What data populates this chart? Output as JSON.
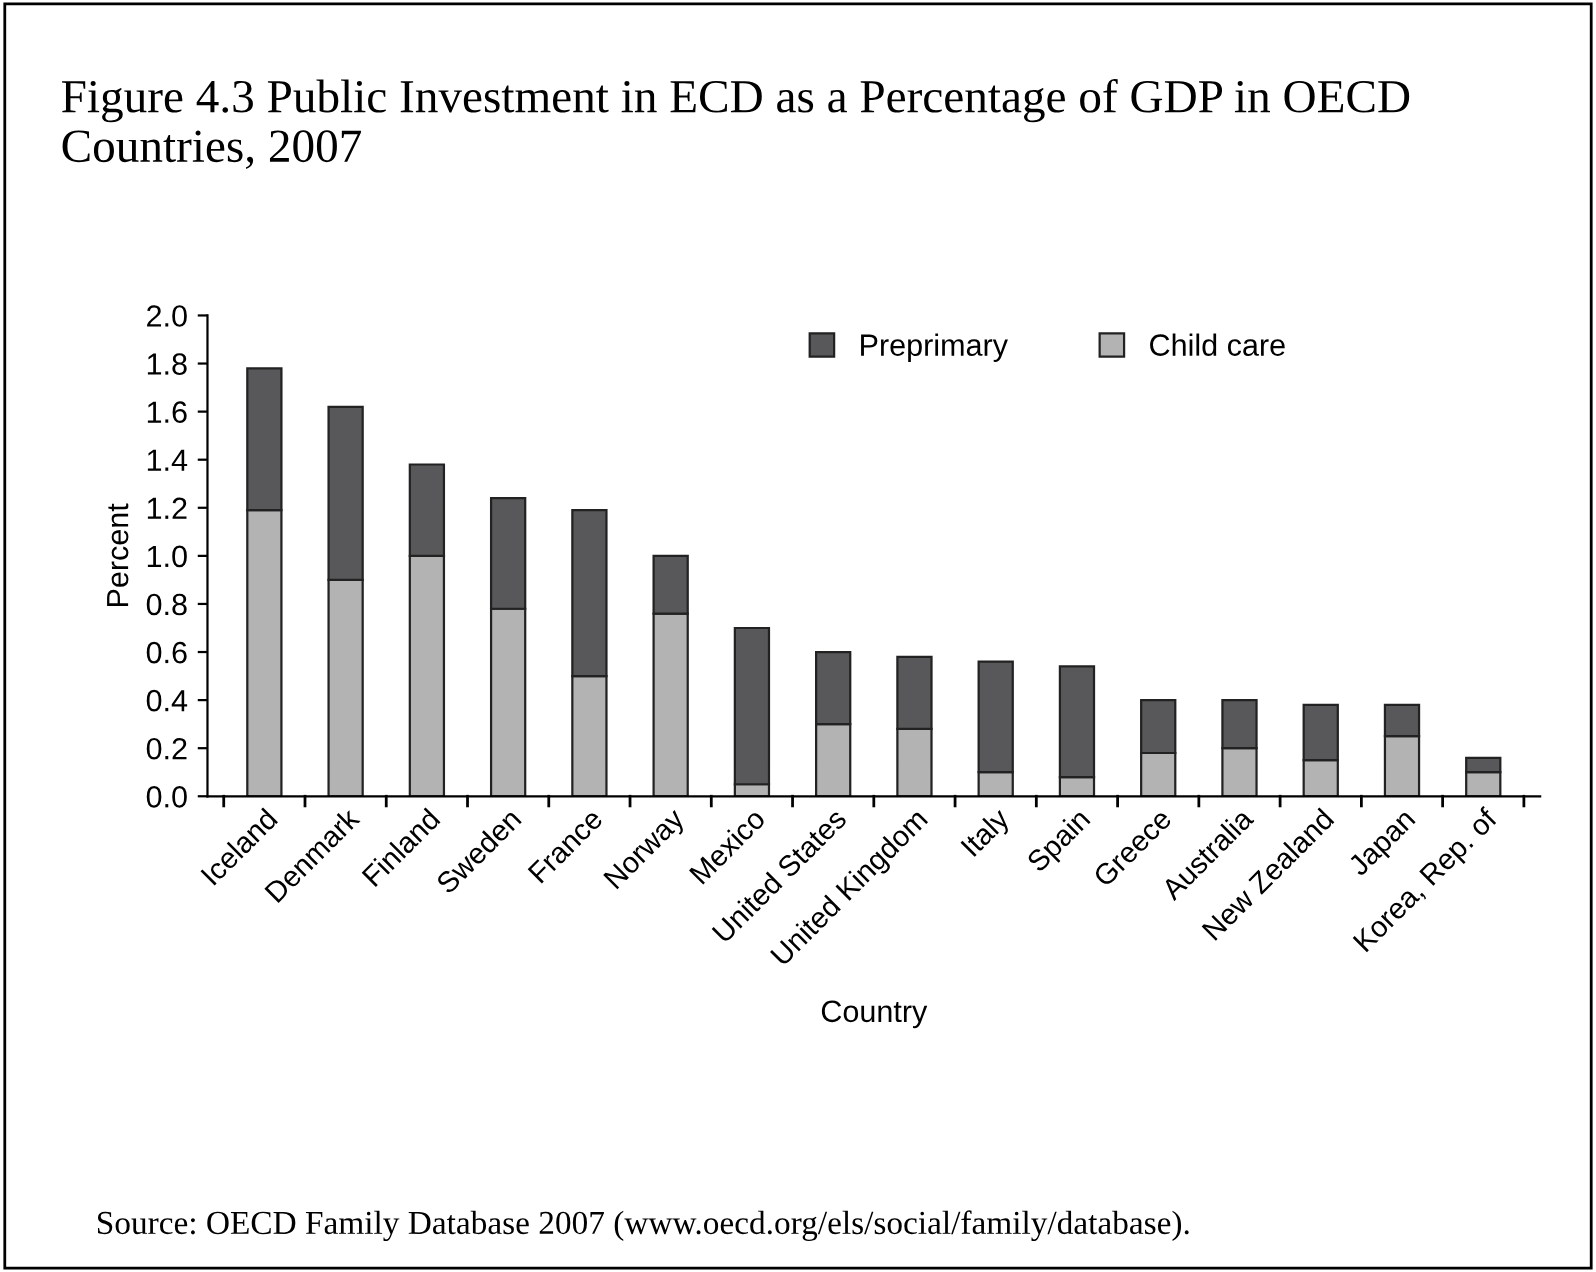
{
  "chart_data": {
    "type": "bar",
    "title": "Figure 4.3 Public Investment in ECD as a Percentage of GDP in OECD Countries, 2007",
    "xlabel": "Country",
    "ylabel": "Percent",
    "categories": [
      "Iceland",
      "Denmark",
      "Finland",
      "Sweden",
      "France",
      "Norway",
      "Mexico",
      "United States",
      "United Kingdom",
      "Italy",
      "Spain",
      "Greece",
      "Australia",
      "New Zealand",
      "Japan",
      "Korea, Rep. of"
    ],
    "series": [
      {
        "name": "Child care",
        "color": "#b3b3b3",
        "values": [
          1.19,
          0.9,
          1.0,
          0.78,
          0.5,
          0.76,
          0.05,
          0.3,
          0.28,
          0.1,
          0.08,
          0.18,
          0.2,
          0.15,
          0.25,
          0.1
        ]
      },
      {
        "name": "Preprimary",
        "color": "#58585a",
        "values": [
          0.59,
          0.72,
          0.38,
          0.46,
          0.69,
          0.24,
          0.65,
          0.3,
          0.3,
          0.46,
          0.46,
          0.22,
          0.2,
          0.23,
          0.13,
          0.06
        ]
      }
    ],
    "stacked": true,
    "ylim": [
      0,
      2.0
    ],
    "yticks": [
      {
        "value": 0,
        "label": "0.0"
      },
      {
        "value": 0.2,
        "label": "0.2"
      },
      {
        "value": 0.4,
        "label": "0.4"
      },
      {
        "value": 0.6,
        "label": "0.6"
      },
      {
        "value": 0.8,
        "label": "0.8"
      },
      {
        "value": 1.0,
        "label": "1.0"
      },
      {
        "value": 1.2,
        "label": "1.2"
      },
      {
        "value": 1.4,
        "label": "1.4"
      },
      {
        "value": 1.6,
        "label": "1.6"
      },
      {
        "value": 1.8,
        "label": "1.8"
      },
      {
        "value": 2.0,
        "label": "2.0"
      }
    ],
    "grid": false,
    "legend": "top right",
    "annotations": [
      "Source: OECD Family Database 2007 (www.oecd.org/els/social/family/database)."
    ]
  }
}
